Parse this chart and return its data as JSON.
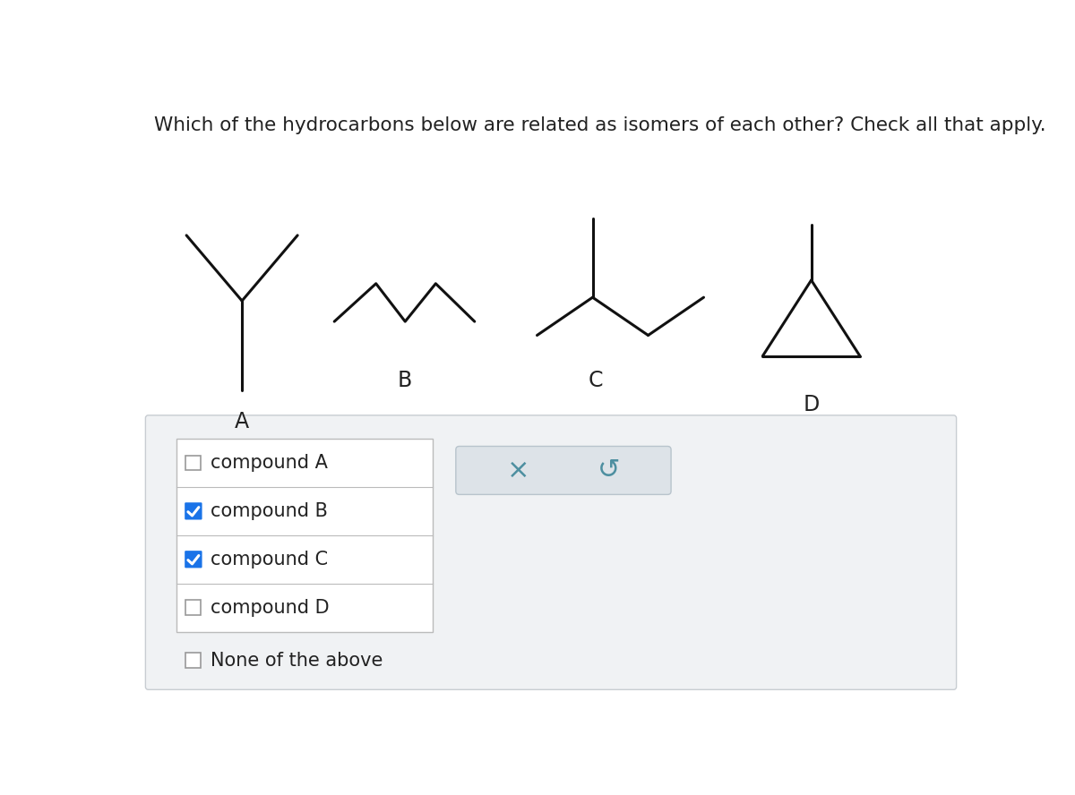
{
  "title": "Which of the hydrocarbons below are related as isomers of each other? Check all that apply.",
  "title_fontsize": 15.5,
  "bg_color": "#ffffff",
  "panel_bg": "#f0f2f4",
  "compound_labels": [
    "A",
    "B",
    "C",
    "D"
  ],
  "checkboxes": [
    {
      "label": "compound A",
      "checked": false
    },
    {
      "label": "compound B",
      "checked": true
    },
    {
      "label": "compound C",
      "checked": true
    },
    {
      "label": "compound D",
      "checked": false
    }
  ],
  "none_label": "None of the above",
  "none_checked": false,
  "checkbox_color_checked": "#1a73e8",
  "label_color": "#222222",
  "x_button_color": "#4d8fa0",
  "undo_button_color": "#4d8fa0",
  "panel_border_color": "#c8cdd2",
  "line_color": "#111111",
  "lw": 2.2
}
